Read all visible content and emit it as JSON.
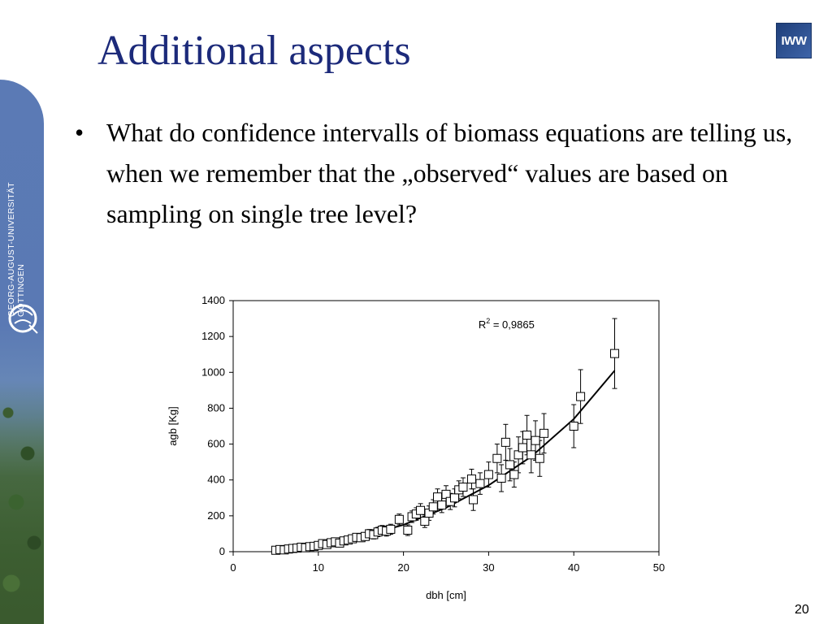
{
  "slide": {
    "title": "Additional aspects",
    "bullet_symbol": "•",
    "bullet_text": "What do confidence intervalls of biomass equations are telling us, when we remember that the „observed“ values are based on sampling on single tree level?",
    "page_number": "20",
    "logo_text": "IWW",
    "university_line1": "GEORG-AUGUST-UNIVERSITÄT",
    "university_line2": "GÖTTINGEN"
  },
  "chart_data": {
    "type": "scatter",
    "xlabel": "dbh [cm]",
    "ylabel": "agb [Kg]",
    "xlim": [
      0,
      50
    ],
    "ylim": [
      0,
      1400
    ],
    "xticks": [
      0,
      10,
      20,
      30,
      40,
      50
    ],
    "yticks": [
      0,
      200,
      400,
      600,
      800,
      1000,
      1200,
      1400
    ],
    "grid": false,
    "annotation": "R",
    "annotation_sup": "2",
    "annotation_value": " = 0,9865",
    "marker": "open-square",
    "fit_curve": {
      "x": [
        5,
        10,
        15,
        20,
        25,
        30,
        35,
        40,
        44.8
      ],
      "y": [
        12,
        38,
        83,
        150,
        245,
        370,
        530,
        740,
        1010
      ]
    },
    "series": [
      {
        "points": [
          {
            "x": 5,
            "y": 8,
            "err": 6
          },
          {
            "x": 5.5,
            "y": 12,
            "err": 6
          },
          {
            "x": 6,
            "y": 10,
            "err": 6
          },
          {
            "x": 6.5,
            "y": 15,
            "err": 8
          },
          {
            "x": 7,
            "y": 18,
            "err": 8
          },
          {
            "x": 7.5,
            "y": 20,
            "err": 8
          },
          {
            "x": 8,
            "y": 25,
            "err": 10
          },
          {
            "x": 8.5,
            "y": 22,
            "err": 10
          },
          {
            "x": 9,
            "y": 28,
            "err": 10
          },
          {
            "x": 9.5,
            "y": 30,
            "err": 12
          },
          {
            "x": 10,
            "y": 35,
            "err": 12
          },
          {
            "x": 10.5,
            "y": 45,
            "err": 14
          },
          {
            "x": 11,
            "y": 40,
            "err": 14
          },
          {
            "x": 11.5,
            "y": 50,
            "err": 14
          },
          {
            "x": 12,
            "y": 55,
            "err": 16
          },
          {
            "x": 12.5,
            "y": 48,
            "err": 16
          },
          {
            "x": 13,
            "y": 60,
            "err": 18
          },
          {
            "x": 13.5,
            "y": 65,
            "err": 18
          },
          {
            "x": 14,
            "y": 72,
            "err": 20
          },
          {
            "x": 14.5,
            "y": 80,
            "err": 20
          },
          {
            "x": 15,
            "y": 78,
            "err": 22
          },
          {
            "x": 15.5,
            "y": 85,
            "err": 22
          },
          {
            "x": 16,
            "y": 100,
            "err": 24
          },
          {
            "x": 16.5,
            "y": 95,
            "err": 24
          },
          {
            "x": 17,
            "y": 110,
            "err": 26
          },
          {
            "x": 17.5,
            "y": 120,
            "err": 26
          },
          {
            "x": 18,
            "y": 115,
            "err": 28
          },
          {
            "x": 18.5,
            "y": 125,
            "err": 28
          },
          {
            "x": 19.5,
            "y": 180,
            "err": 30
          },
          {
            "x": 20.5,
            "y": 120,
            "err": 30
          },
          {
            "x": 21,
            "y": 195,
            "err": 32
          },
          {
            "x": 21.5,
            "y": 210,
            "err": 35
          },
          {
            "x": 22,
            "y": 230,
            "err": 38
          },
          {
            "x": 22.5,
            "y": 170,
            "err": 35
          },
          {
            "x": 23,
            "y": 215,
            "err": 40
          },
          {
            "x": 23.5,
            "y": 250,
            "err": 40
          },
          {
            "x": 24,
            "y": 305,
            "err": 45
          },
          {
            "x": 24.5,
            "y": 260,
            "err": 42
          },
          {
            "x": 25,
            "y": 320,
            "err": 48
          },
          {
            "x": 25.5,
            "y": 280,
            "err": 45
          },
          {
            "x": 26,
            "y": 300,
            "err": 50
          },
          {
            "x": 26.5,
            "y": 345,
            "err": 50
          },
          {
            "x": 27,
            "y": 360,
            "err": 52
          },
          {
            "x": 28,
            "y": 405,
            "err": 55
          },
          {
            "x": 28.2,
            "y": 290,
            "err": 60
          },
          {
            "x": 29,
            "y": 380,
            "err": 60
          },
          {
            "x": 30,
            "y": 430,
            "err": 70
          },
          {
            "x": 31,
            "y": 520,
            "err": 80
          },
          {
            "x": 31.5,
            "y": 410,
            "err": 75
          },
          {
            "x": 32,
            "y": 610,
            "err": 100
          },
          {
            "x": 32.5,
            "y": 485,
            "err": 90
          },
          {
            "x": 33,
            "y": 430,
            "err": 70
          },
          {
            "x": 33.5,
            "y": 540,
            "err": 100
          },
          {
            "x": 34,
            "y": 580,
            "err": 90
          },
          {
            "x": 34.5,
            "y": 650,
            "err": 110
          },
          {
            "x": 35,
            "y": 540,
            "err": 100
          },
          {
            "x": 35.5,
            "y": 620,
            "err": 110
          },
          {
            "x": 36,
            "y": 520,
            "err": 100
          },
          {
            "x": 36.5,
            "y": 660,
            "err": 110
          },
          {
            "x": 40,
            "y": 700,
            "err": 120
          },
          {
            "x": 40.8,
            "y": 865,
            "err": 150
          },
          {
            "x": 44.8,
            "y": 1105,
            "err": 195
          }
        ]
      }
    ]
  }
}
